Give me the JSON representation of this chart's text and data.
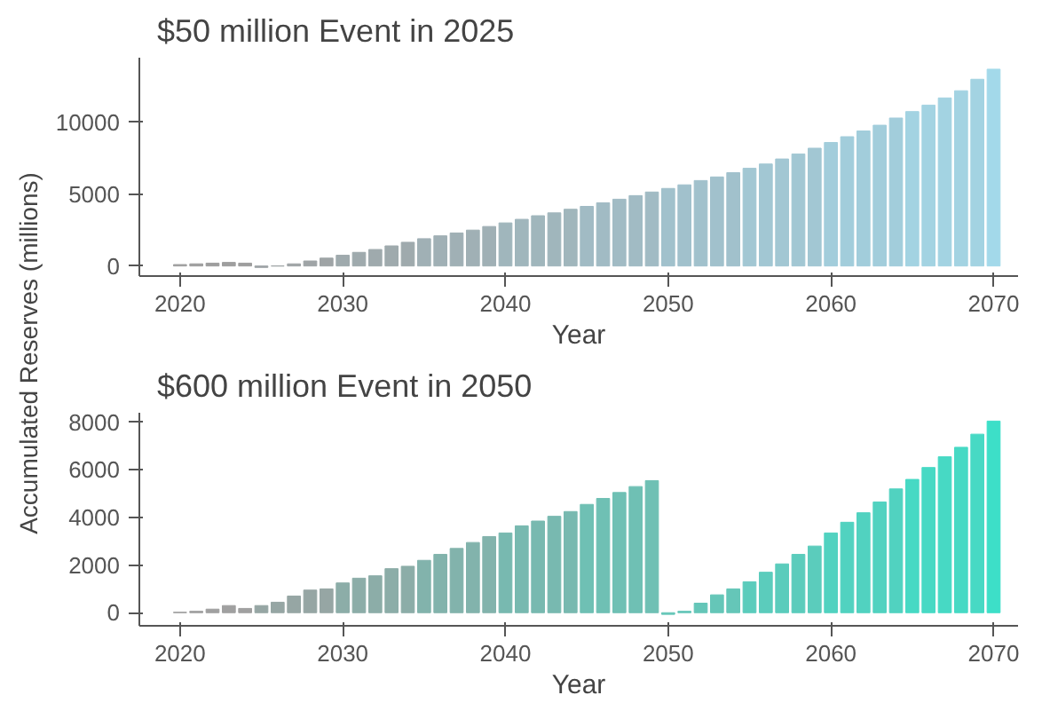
{
  "chart_data": [
    {
      "type": "bar",
      "title": "$50 million Event in 2025",
      "xlabel": "Year",
      "ylabel": "Accumulated Reserves (millions)",
      "x": [
        2020,
        2021,
        2022,
        2023,
        2024,
        2025,
        2026,
        2027,
        2028,
        2029,
        2030,
        2031,
        2032,
        2033,
        2034,
        2035,
        2036,
        2037,
        2038,
        2039,
        2040,
        2041,
        2042,
        2043,
        2044,
        2045,
        2046,
        2047,
        2048,
        2049,
        2050,
        2051,
        2052,
        2053,
        2054,
        2055,
        2056,
        2057,
        2058,
        2059,
        2060,
        2061,
        2062,
        2063,
        2064,
        2065,
        2066,
        2067,
        2068,
        2069,
        2070
      ],
      "values": [
        100,
        150,
        200,
        250,
        200,
        -100,
        0,
        150,
        350,
        550,
        750,
        950,
        1150,
        1400,
        1650,
        1900,
        2100,
        2300,
        2500,
        2750,
        3000,
        3250,
        3500,
        3700,
        3950,
        4150,
        4400,
        4650,
        4900,
        5150,
        5400,
        5650,
        5950,
        6200,
        6500,
        6800,
        7100,
        7450,
        7800,
        8200,
        8600,
        9000,
        9400,
        9800,
        10300,
        10750,
        11200,
        11700,
        12200,
        13000,
        13700
      ],
      "colors": [
        "#9e9e9e",
        "#9e9e9e",
        "#9e9e9e",
        "#9e9e9e",
        "#9e9e9e",
        "#9fa4a6",
        "#9fa4a6",
        "#9fa4a6",
        "#9fa4a6",
        "#9fa4a6",
        "#9faaad",
        "#9faaad",
        "#9faaad",
        "#9faaad",
        "#9faaad",
        "#a0b0b5",
        "#a0b0b5",
        "#a0b0b5",
        "#a0b0b5",
        "#a0b0b5",
        "#a0b6bc",
        "#a0b6bc",
        "#a0b6bc",
        "#a0b6bc",
        "#a0b6bc",
        "#a1bbc4",
        "#a1bbc4",
        "#a1bbc4",
        "#a1bbc4",
        "#a1bbc4",
        "#a1c1cc",
        "#a1c1cc",
        "#a1c1cc",
        "#a1c1cc",
        "#a1c1cc",
        "#a2c7d3",
        "#a2c7d3",
        "#a2c7d3",
        "#a2c7d3",
        "#a2c7d3",
        "#a2cddb",
        "#a2cddb",
        "#a2cddb",
        "#a2cddb",
        "#a2cddb",
        "#a3d3e2",
        "#a3d3e2",
        "#a3d3e2",
        "#a3d3e2",
        "#a3d3e2",
        "#a3d9ea"
      ],
      "xlim": [
        2017.5,
        2071.5
      ],
      "xticks": [
        2020,
        2030,
        2040,
        2050,
        2060,
        2070
      ],
      "ylim": [
        -700,
        14500
      ],
      "yticks": [
        0,
        5000,
        10000
      ],
      "grid": false,
      "legend": false
    },
    {
      "type": "bar",
      "title": "$600 million Event in 2050",
      "xlabel": "Year",
      "x": [
        2020,
        2021,
        2022,
        2023,
        2024,
        2025,
        2026,
        2027,
        2028,
        2029,
        2030,
        2031,
        2032,
        2033,
        2034,
        2035,
        2036,
        2037,
        2038,
        2039,
        2040,
        2041,
        2042,
        2043,
        2044,
        2045,
        2046,
        2047,
        2048,
        2049,
        2050,
        2051,
        2052,
        2053,
        2054,
        2055,
        2056,
        2057,
        2058,
        2059,
        2060,
        2061,
        2062,
        2063,
        2064,
        2065,
        2066,
        2067,
        2068,
        2069,
        2070
      ],
      "values": [
        20,
        60,
        150,
        300,
        180,
        300,
        440,
        700,
        950,
        1000,
        1250,
        1450,
        1550,
        1850,
        1950,
        2200,
        2450,
        2700,
        2950,
        3200,
        3350,
        3650,
        3850,
        4050,
        4250,
        4550,
        4800,
        5050,
        5300,
        5550,
        -70,
        60,
        400,
        750,
        1000,
        1300,
        1700,
        2050,
        2450,
        2800,
        3350,
        3800,
        4200,
        4650,
        5200,
        5600,
        6100,
        6550,
        6950,
        7500,
        8050
      ],
      "colors": [
        "#a0a0a0",
        "#a0a0a0",
        "#a0a0a0",
        "#a0a0a0",
        "#a0a0a0",
        "#96a6a4",
        "#96a6a4",
        "#96a6a4",
        "#96a6a4",
        "#96a6a4",
        "#8cada8",
        "#8cada8",
        "#8cada8",
        "#8cada8",
        "#8cada8",
        "#82b3ac",
        "#82b3ac",
        "#82b3ac",
        "#82b3ac",
        "#82b3ac",
        "#78b9b0",
        "#78b9b0",
        "#78b9b0",
        "#78b9b0",
        "#78b9b0",
        "#6fc0b4",
        "#6fc0b4",
        "#6fc0b4",
        "#6fc0b4",
        "#6fc0b4",
        "#65c6b8",
        "#65c6b8",
        "#65c6b8",
        "#65c6b8",
        "#65c6b8",
        "#5bccbc",
        "#5bccbc",
        "#5bccbc",
        "#5bccbc",
        "#5bccbc",
        "#51d2c0",
        "#51d2c0",
        "#51d2c0",
        "#51d2c0",
        "#51d2c0",
        "#47d9c4",
        "#47d9c4",
        "#47d9c4",
        "#47d9c4",
        "#47d9c4",
        "#3ddfc8"
      ],
      "xlim": [
        2017.5,
        2071.5
      ],
      "xticks": [
        2020,
        2030,
        2040,
        2050,
        2060,
        2070
      ],
      "ylim": [
        -550,
        8400
      ],
      "yticks": [
        0,
        2000,
        4000,
        6000,
        8000
      ],
      "grid": false,
      "legend": false
    }
  ]
}
